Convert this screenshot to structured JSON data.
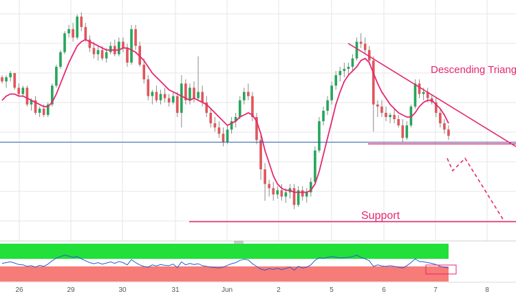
{
  "chart_data": {
    "type": "candlestick",
    "title": "",
    "xlabel": "",
    "ylabel": "",
    "x_tick_labels": [
      "26",
      "29",
      "30",
      "31",
      "Jun",
      "2",
      "5",
      "6",
      "7",
      "8"
    ],
    "grid": true,
    "annotations": {
      "pattern_label": "Descending Triang",
      "support_label": "Support"
    },
    "candles": [
      [
        0.69,
        0.7,
        0.66,
        0.67
      ],
      [
        0.67,
        0.7,
        0.64,
        0.69
      ],
      [
        0.69,
        0.72,
        0.67,
        0.71
      ],
      [
        0.71,
        0.71,
        0.63,
        0.64
      ],
      [
        0.64,
        0.66,
        0.6,
        0.61
      ],
      [
        0.61,
        0.65,
        0.6,
        0.64
      ],
      [
        0.64,
        0.65,
        0.55,
        0.56
      ],
      [
        0.56,
        0.59,
        0.53,
        0.58
      ],
      [
        0.58,
        0.6,
        0.51,
        0.52
      ],
      [
        0.52,
        0.55,
        0.5,
        0.54
      ],
      [
        0.54,
        0.56,
        0.5,
        0.51
      ],
      [
        0.51,
        0.57,
        0.5,
        0.56
      ],
      [
        0.56,
        0.66,
        0.55,
        0.65
      ],
      [
        0.65,
        0.75,
        0.64,
        0.74
      ],
      [
        0.74,
        0.82,
        0.73,
        0.81
      ],
      [
        0.81,
        0.91,
        0.8,
        0.9
      ],
      [
        0.9,
        0.94,
        0.88,
        0.92
      ],
      [
        0.92,
        0.95,
        0.86,
        0.88
      ],
      [
        0.88,
        0.99,
        0.87,
        0.98
      ],
      [
        0.98,
        1.0,
        0.91,
        0.93
      ],
      [
        0.93,
        0.95,
        0.86,
        0.87
      ],
      [
        0.87,
        0.89,
        0.81,
        0.83
      ],
      [
        0.83,
        0.86,
        0.78,
        0.8
      ],
      [
        0.8,
        0.84,
        0.77,
        0.82
      ],
      [
        0.82,
        0.84,
        0.77,
        0.78
      ],
      [
        0.78,
        0.83,
        0.76,
        0.81
      ],
      [
        0.81,
        0.86,
        0.8,
        0.84
      ],
      [
        0.84,
        0.87,
        0.79,
        0.8
      ],
      [
        0.8,
        0.88,
        0.79,
        0.86
      ],
      [
        0.86,
        0.88,
        0.81,
        0.83
      ],
      [
        0.83,
        0.85,
        0.74,
        0.76
      ],
      [
        0.76,
        0.94,
        0.75,
        0.92
      ],
      [
        0.92,
        0.94,
        0.82,
        0.84
      ],
      [
        0.84,
        0.86,
        0.74,
        0.75
      ],
      [
        0.75,
        0.78,
        0.66,
        0.68
      ],
      [
        0.68,
        0.7,
        0.58,
        0.6
      ],
      [
        0.6,
        0.63,
        0.56,
        0.62
      ],
      [
        0.62,
        0.65,
        0.57,
        0.58
      ],
      [
        0.58,
        0.63,
        0.56,
        0.61
      ],
      [
        0.61,
        0.64,
        0.57,
        0.59
      ],
      [
        0.59,
        0.61,
        0.55,
        0.57
      ],
      [
        0.57,
        0.62,
        0.56,
        0.6
      ],
      [
        0.6,
        0.62,
        0.5,
        0.52
      ],
      [
        0.52,
        0.7,
        0.45,
        0.66
      ],
      [
        0.66,
        0.68,
        0.56,
        0.58
      ],
      [
        0.58,
        0.66,
        0.56,
        0.64
      ],
      [
        0.64,
        0.67,
        0.57,
        0.59
      ],
      [
        0.59,
        0.79,
        0.58,
        0.62
      ],
      [
        0.62,
        0.65,
        0.55,
        0.57
      ],
      [
        0.57,
        0.6,
        0.5,
        0.52
      ],
      [
        0.52,
        0.54,
        0.45,
        0.47
      ],
      [
        0.47,
        0.5,
        0.43,
        0.45
      ],
      [
        0.45,
        0.48,
        0.4,
        0.42
      ],
      [
        0.42,
        0.45,
        0.36,
        0.38
      ],
      [
        0.38,
        0.46,
        0.37,
        0.44
      ],
      [
        0.44,
        0.5,
        0.42,
        0.48
      ],
      [
        0.48,
        0.52,
        0.45,
        0.5
      ],
      [
        0.5,
        0.6,
        0.49,
        0.58
      ],
      [
        0.58,
        0.64,
        0.56,
        0.62
      ],
      [
        0.62,
        0.66,
        0.58,
        0.6
      ],
      [
        0.6,
        0.62,
        0.48,
        0.5
      ],
      [
        0.5,
        0.52,
        0.37,
        0.39
      ],
      [
        0.39,
        0.42,
        0.2,
        0.25
      ],
      [
        0.25,
        0.28,
        0.1,
        0.18
      ],
      [
        0.18,
        0.2,
        0.12,
        0.16
      ],
      [
        0.16,
        0.19,
        0.1,
        0.13
      ],
      [
        0.13,
        0.17,
        0.11,
        0.15
      ],
      [
        0.15,
        0.18,
        0.1,
        0.12
      ],
      [
        0.12,
        0.16,
        0.09,
        0.14
      ],
      [
        0.14,
        0.18,
        0.11,
        0.16
      ],
      [
        0.16,
        0.18,
        0.06,
        0.08
      ],
      [
        0.08,
        0.17,
        0.07,
        0.15
      ],
      [
        0.15,
        0.17,
        0.1,
        0.12
      ],
      [
        0.12,
        0.16,
        0.09,
        0.14
      ],
      [
        0.14,
        0.21,
        0.12,
        0.19
      ],
      [
        0.19,
        0.36,
        0.18,
        0.34
      ],
      [
        0.34,
        0.5,
        0.33,
        0.48
      ],
      [
        0.48,
        0.55,
        0.46,
        0.53
      ],
      [
        0.53,
        0.6,
        0.51,
        0.58
      ],
      [
        0.58,
        0.67,
        0.56,
        0.65
      ],
      [
        0.65,
        0.72,
        0.63,
        0.7
      ],
      [
        0.7,
        0.74,
        0.67,
        0.72
      ],
      [
        0.72,
        0.76,
        0.69,
        0.73
      ],
      [
        0.73,
        0.76,
        0.7,
        0.74
      ],
      [
        0.74,
        0.8,
        0.72,
        0.78
      ],
      [
        0.78,
        0.88,
        0.77,
        0.86
      ],
      [
        0.86,
        0.9,
        0.83,
        0.85
      ],
      [
        0.85,
        0.88,
        0.8,
        0.82
      ],
      [
        0.82,
        0.84,
        0.75,
        0.77
      ],
      [
        0.77,
        0.79,
        0.43,
        0.56
      ],
      [
        0.56,
        0.58,
        0.5,
        0.55
      ],
      [
        0.55,
        0.58,
        0.5,
        0.52
      ],
      [
        0.52,
        0.55,
        0.48,
        0.5
      ],
      [
        0.5,
        0.52,
        0.47,
        0.51
      ],
      [
        0.51,
        0.54,
        0.47,
        0.49
      ],
      [
        0.49,
        0.51,
        0.45,
        0.46
      ],
      [
        0.46,
        0.49,
        0.38,
        0.4
      ],
      [
        0.4,
        0.48,
        0.39,
        0.46
      ],
      [
        0.46,
        0.56,
        0.45,
        0.55
      ],
      [
        0.55,
        0.68,
        0.54,
        0.66
      ],
      [
        0.66,
        0.68,
        0.59,
        0.61
      ],
      [
        0.61,
        0.64,
        0.58,
        0.62
      ],
      [
        0.62,
        0.64,
        0.57,
        0.59
      ],
      [
        0.59,
        0.61,
        0.56,
        0.57
      ],
      [
        0.57,
        0.59,
        0.5,
        0.52
      ],
      [
        0.52,
        0.54,
        0.45,
        0.47
      ],
      [
        0.47,
        0.49,
        0.42,
        0.44
      ],
      [
        0.44,
        0.46,
        0.39,
        0.41
      ]
    ],
    "moving_average": [
      0.58,
      0.6,
      0.61,
      0.61,
      0.6,
      0.6,
      0.59,
      0.58,
      0.57,
      0.56,
      0.55,
      0.55,
      0.57,
      0.61,
      0.66,
      0.71,
      0.76,
      0.8,
      0.84,
      0.86,
      0.87,
      0.86,
      0.85,
      0.84,
      0.83,
      0.82,
      0.82,
      0.82,
      0.82,
      0.83,
      0.83,
      0.82,
      0.81,
      0.79,
      0.77,
      0.74,
      0.71,
      0.69,
      0.67,
      0.65,
      0.63,
      0.62,
      0.61,
      0.6,
      0.59,
      0.58,
      0.59,
      0.58,
      0.57,
      0.56,
      0.54,
      0.52,
      0.5,
      0.48,
      0.46,
      0.47,
      0.48,
      0.5,
      0.51,
      0.52,
      0.51,
      0.48,
      0.42,
      0.34,
      0.28,
      0.22,
      0.18,
      0.16,
      0.15,
      0.15,
      0.14,
      0.14,
      0.14,
      0.14,
      0.15,
      0.18,
      0.24,
      0.32,
      0.4,
      0.48,
      0.56,
      0.62,
      0.67,
      0.7,
      0.72,
      0.74,
      0.77,
      0.78,
      0.76,
      0.71,
      0.66,
      0.62,
      0.59,
      0.56,
      0.54,
      0.52,
      0.51,
      0.5,
      0.5,
      0.52,
      0.55,
      0.57,
      0.58,
      0.58,
      0.56,
      0.54,
      0.51,
      0.47
    ],
    "rsi": [
      48,
      50,
      52,
      49,
      45,
      44,
      40,
      42,
      38,
      43,
      40,
      46,
      55,
      62,
      66,
      70,
      67,
      64,
      66,
      60,
      55,
      50,
      47,
      50,
      46,
      49,
      52,
      48,
      53,
      50,
      44,
      58,
      50,
      44,
      40,
      38,
      44,
      41,
      45,
      43,
      42,
      46,
      37,
      52,
      44,
      48,
      45,
      47,
      42,
      40,
      38,
      37,
      36,
      38,
      43,
      47,
      50,
      56,
      59,
      57,
      47,
      40,
      33,
      30,
      34,
      32,
      35,
      31,
      35,
      38,
      30,
      40,
      36,
      38,
      44,
      56,
      63,
      61,
      64,
      66,
      64,
      62,
      63,
      64,
      66,
      70,
      64,
      60,
      55,
      40,
      44,
      41,
      40,
      42,
      40,
      38,
      36,
      42,
      50,
      60,
      53,
      52,
      50,
      48,
      45,
      40,
      38,
      36
    ],
    "rsi_overbought_band": [
      60,
      100
    ],
    "rsi_oversold_band": [
      0,
      40
    ],
    "horizontal_levels": {
      "blue_line": 0.38,
      "neckline": 0.375,
      "support": 0.0
    },
    "colors": {
      "up_candle": "#26a65b",
      "down_candle": "#e0565b",
      "wick": "#8a8a8a",
      "moving_average": "#e6266f",
      "annotation": "#e6266f",
      "blue_line": "#2e5ea8",
      "rsi_line": "#2b59d1",
      "rsi_upper_band": "#22e03a",
      "rsi_lower_band": "#f77b76",
      "grid": "#e6e6e6"
    }
  }
}
